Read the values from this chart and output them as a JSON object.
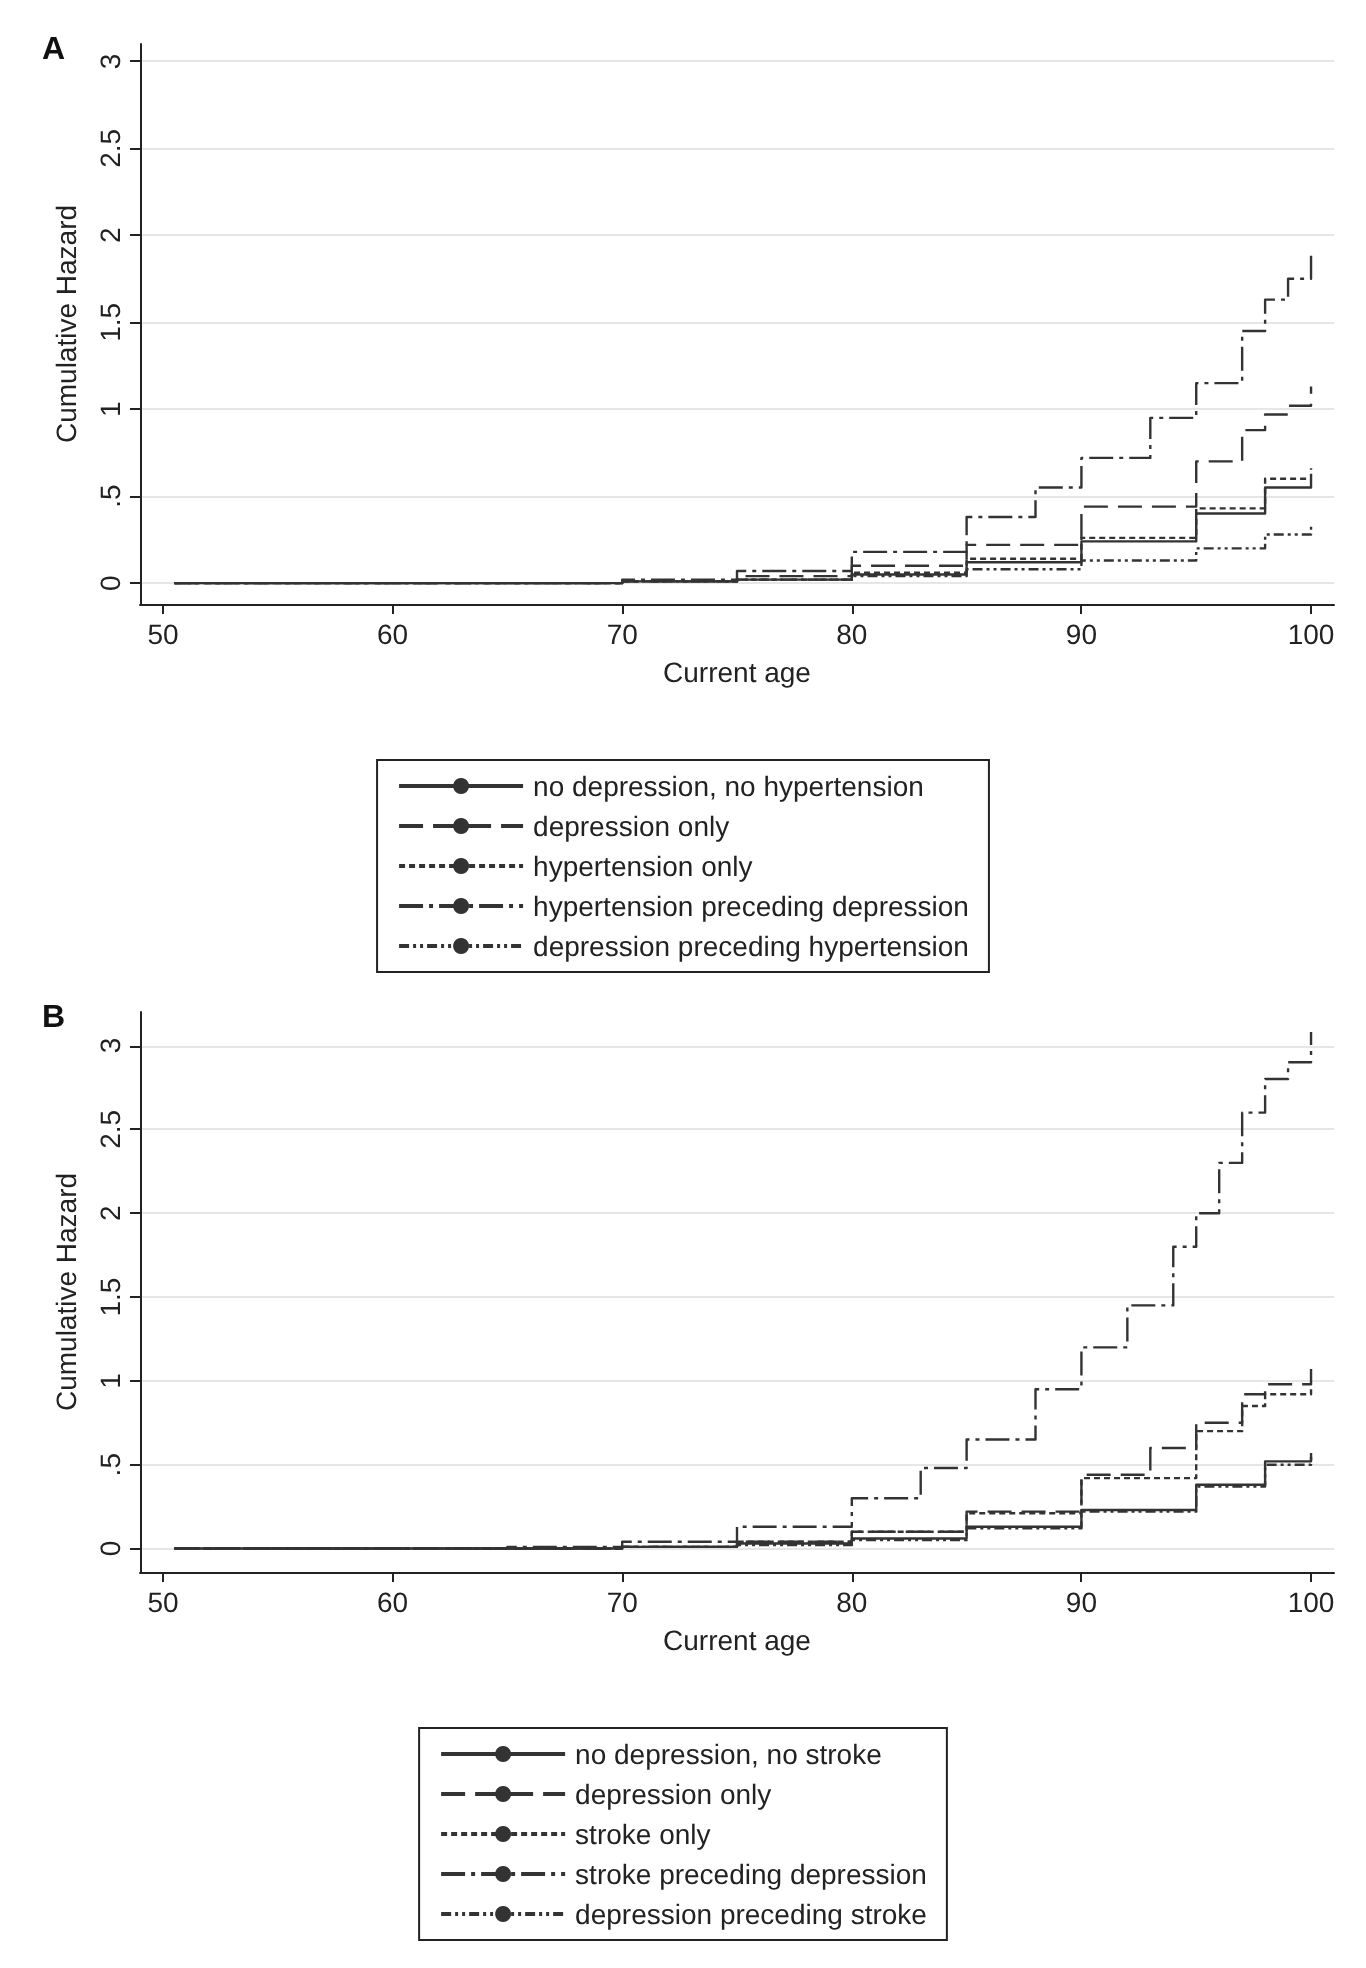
{
  "chart_data": [
    {
      "type": "step",
      "title": "A",
      "xlabel": "Current age",
      "ylabel": "Cumulative Hazard",
      "xlim": [
        49,
        101
      ],
      "ylim": [
        -0.12,
        3.1
      ],
      "xticks": [
        50,
        60,
        70,
        80,
        90,
        100
      ],
      "yticks": [
        0,
        {
          "value": 0.5,
          "label": ".5"
        },
        1,
        1.5,
        2,
        2.5,
        3
      ],
      "grid": "y",
      "legend": "bottom",
      "series": [
        {
          "name": "no depression, no hypertension",
          "color": "#333333",
          "line_style": "solid",
          "x": [
            50.5,
            60,
            65,
            70,
            75,
            80,
            85,
            90,
            95,
            98,
            100
          ],
          "values": [
            0,
            0,
            0,
            0.01,
            0.02,
            0.05,
            0.12,
            0.24,
            0.4,
            0.55,
            0.6
          ]
        },
        {
          "name": "depression only",
          "color": "#333333",
          "line_style": "dashed",
          "x": [
            50.5,
            60,
            65,
            70,
            75,
            80,
            85,
            90,
            95,
            97,
            98,
            99,
            100
          ],
          "values": [
            0,
            0,
            0,
            0.01,
            0.04,
            0.1,
            0.22,
            0.44,
            0.7,
            0.88,
            0.97,
            1.02,
            1.13
          ]
        },
        {
          "name": "hypertension only",
          "color": "#333333",
          "line_style": "dotted",
          "x": [
            50.5,
            60,
            65,
            70,
            75,
            80,
            85,
            90,
            95,
            98,
            100
          ],
          "values": [
            0,
            0,
            0,
            0.01,
            0.02,
            0.06,
            0.14,
            0.26,
            0.43,
            0.6,
            0.66
          ]
        },
        {
          "name": "hypertension preceding depression",
          "color": "#333333",
          "line_style": "dashdot",
          "x": [
            50.5,
            60,
            65,
            70,
            75,
            80,
            85,
            88,
            90,
            93,
            95,
            97,
            98,
            99,
            100
          ],
          "values": [
            0,
            0,
            0,
            0.02,
            0.07,
            0.18,
            0.38,
            0.55,
            0.72,
            0.95,
            1.15,
            1.45,
            1.63,
            1.75,
            1.9
          ]
        },
        {
          "name": "depression preceding hypertension",
          "color": "#333333",
          "line_style": "dashdotdot",
          "x": [
            50.5,
            60,
            65,
            70,
            75,
            80,
            85,
            90,
            95,
            98,
            100
          ],
          "values": [
            0,
            0,
            0,
            0.01,
            0.02,
            0.04,
            0.08,
            0.13,
            0.2,
            0.28,
            0.33
          ]
        }
      ]
    },
    {
      "type": "step",
      "title": "B",
      "xlabel": "Current age",
      "ylabel": "Cumulative Hazard",
      "xlim": [
        49,
        101
      ],
      "ylim": [
        -0.14,
        3.2
      ],
      "xticks": [
        50,
        60,
        70,
        80,
        90,
        100
      ],
      "yticks": [
        0,
        {
          "value": 0.5,
          "label": ".5"
        },
        1,
        1.5,
        2,
        2.5,
        3
      ],
      "grid": "y",
      "legend": "bottom",
      "series": [
        {
          "name": "no depression, no stroke",
          "color": "#333333",
          "line_style": "solid",
          "x": [
            50.5,
            60,
            65,
            70,
            75,
            80,
            85,
            90,
            95,
            98,
            100
          ],
          "values": [
            0,
            0,
            0,
            0.01,
            0.03,
            0.06,
            0.13,
            0.23,
            0.38,
            0.52,
            0.57
          ]
        },
        {
          "name": "depression only",
          "color": "#333333",
          "line_style": "dashed",
          "x": [
            50.5,
            60,
            65,
            70,
            75,
            80,
            85,
            90,
            93,
            95,
            97,
            98,
            100
          ],
          "values": [
            0,
            0,
            0,
            0.01,
            0.04,
            0.1,
            0.22,
            0.44,
            0.6,
            0.75,
            0.92,
            0.98,
            1.08
          ]
        },
        {
          "name": "stroke only",
          "color": "#333333",
          "line_style": "dotted",
          "x": [
            50.5,
            60,
            65,
            70,
            75,
            80,
            85,
            90,
            95,
            97,
            98,
            100
          ],
          "values": [
            0,
            0,
            0,
            0.01,
            0.04,
            0.1,
            0.21,
            0.42,
            0.7,
            0.85,
            0.92,
            0.95
          ]
        },
        {
          "name": "stroke preceding depression",
          "color": "#333333",
          "line_style": "dashdot",
          "x": [
            50.5,
            60,
            65,
            70,
            75,
            80,
            83,
            85,
            88,
            90,
            92,
            94,
            95,
            96,
            97,
            98,
            99,
            100
          ],
          "values": [
            0,
            0,
            0.01,
            0.04,
            0.13,
            0.3,
            0.48,
            0.65,
            0.95,
            1.2,
            1.45,
            1.8,
            2.0,
            2.3,
            2.6,
            2.8,
            2.9,
            3.08
          ]
        },
        {
          "name": "depression preceding stroke",
          "color": "#333333",
          "line_style": "dashdotdot",
          "x": [
            50.5,
            60,
            65,
            70,
            75,
            80,
            85,
            90,
            95,
            98,
            100
          ],
          "values": [
            0,
            0,
            0,
            0.01,
            0.02,
            0.05,
            0.12,
            0.22,
            0.37,
            0.5,
            0.55
          ]
        }
      ]
    }
  ]
}
